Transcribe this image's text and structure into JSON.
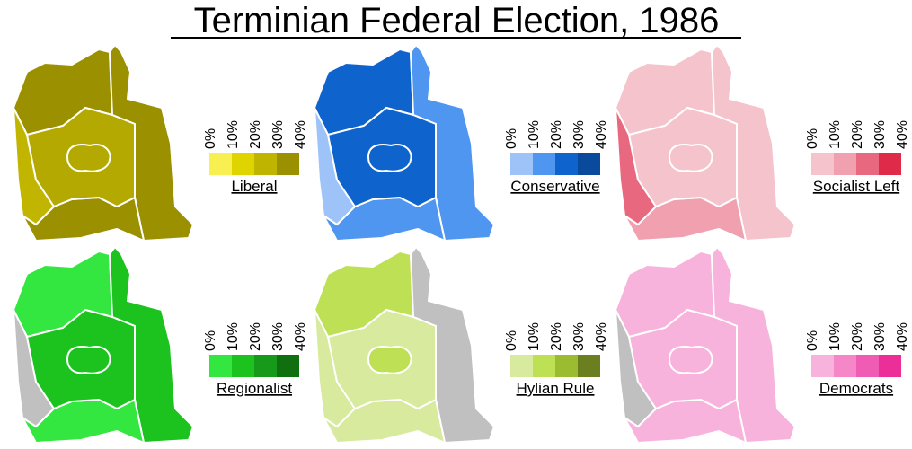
{
  "title": "Terminian Federal Election, 1986",
  "legend_labels": [
    "0%",
    "10%",
    "20%",
    "30%",
    "40%"
  ],
  "panels": [
    {
      "party": "Liberal",
      "legend_colors": [
        "#f8ef50",
        "#e0d400",
        "#bfb400",
        "#9a9000"
      ],
      "regions": {
        "north": "#9a9000",
        "east": "#9a9000",
        "ring": "#b3a900",
        "core": "#b3a900",
        "west": "#c1b500",
        "south": "#9a9000"
      }
    },
    {
      "party": "Conservative",
      "legend_colors": [
        "#9dc3f8",
        "#4f96f0",
        "#0e63cc",
        "#0a4a9c"
      ],
      "regions": {
        "north": "#0e63cc",
        "east": "#4f96f0",
        "ring": "#0e63cc",
        "core": "#0e63cc",
        "west": "#9dc3f8",
        "south": "#4f96f0"
      }
    },
    {
      "party": "Socialist Left",
      "legend_colors": [
        "#f4c3cc",
        "#f0a0ae",
        "#e8687f",
        "#e02a4a"
      ],
      "regions": {
        "north": "#f4c3cc",
        "east": "#f4c3cc",
        "ring": "#f4c3cc",
        "core": "#f4c3cc",
        "west": "#e8687f",
        "south": "#f0a0ae"
      }
    },
    {
      "party": "Regionalist",
      "legend_colors": [
        "#33e640",
        "#1cc31f",
        "#179a1a",
        "#10700f"
      ],
      "regions": {
        "north": "#33e640",
        "east": "#1cc31f",
        "ring": "#1cc31f",
        "core": "#1cc31f",
        "west": "#c0c0c0",
        "south": "#33e640"
      }
    },
    {
      "party": "Hylian Rule",
      "legend_colors": [
        "#d7ea9d",
        "#bde055",
        "#9bbb30",
        "#6b7f20"
      ],
      "regions": {
        "north": "#bde055",
        "east": "#c0c0c0",
        "ring": "#d7ea9d",
        "core": "#bde055",
        "west": "#d7ea9d",
        "south": "#d7ea9d"
      }
    },
    {
      "party": "Democrats",
      "legend_colors": [
        "#f7b3dc",
        "#f587c8",
        "#f05cb3",
        "#ec2f98"
      ],
      "regions": {
        "north": "#f7b3dc",
        "east": "#f7b3dc",
        "ring": "#f7b3dc",
        "core": "#f7b3dc",
        "west": "#c0c0c0",
        "south": "#f7b3dc"
      }
    }
  ]
}
